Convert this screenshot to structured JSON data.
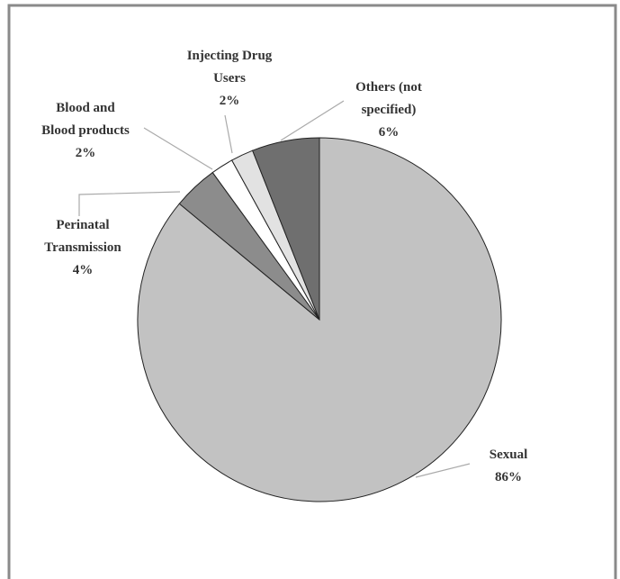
{
  "chart_data": {
    "type": "pie",
    "categories": [
      "Sexual",
      "Perinatal Transmission",
      "Blood and Blood products",
      "Injecting Drug Users",
      "Others (not specified)"
    ],
    "values": [
      86,
      4,
      2,
      2,
      6
    ],
    "value_labels": [
      "86%",
      "4%",
      "2%",
      "2%",
      "6%"
    ],
    "colors": [
      "#c2c2c2",
      "#8c8c8c",
      "#ffffff",
      "#e2e2e2",
      "#6f6f6f"
    ]
  }
}
